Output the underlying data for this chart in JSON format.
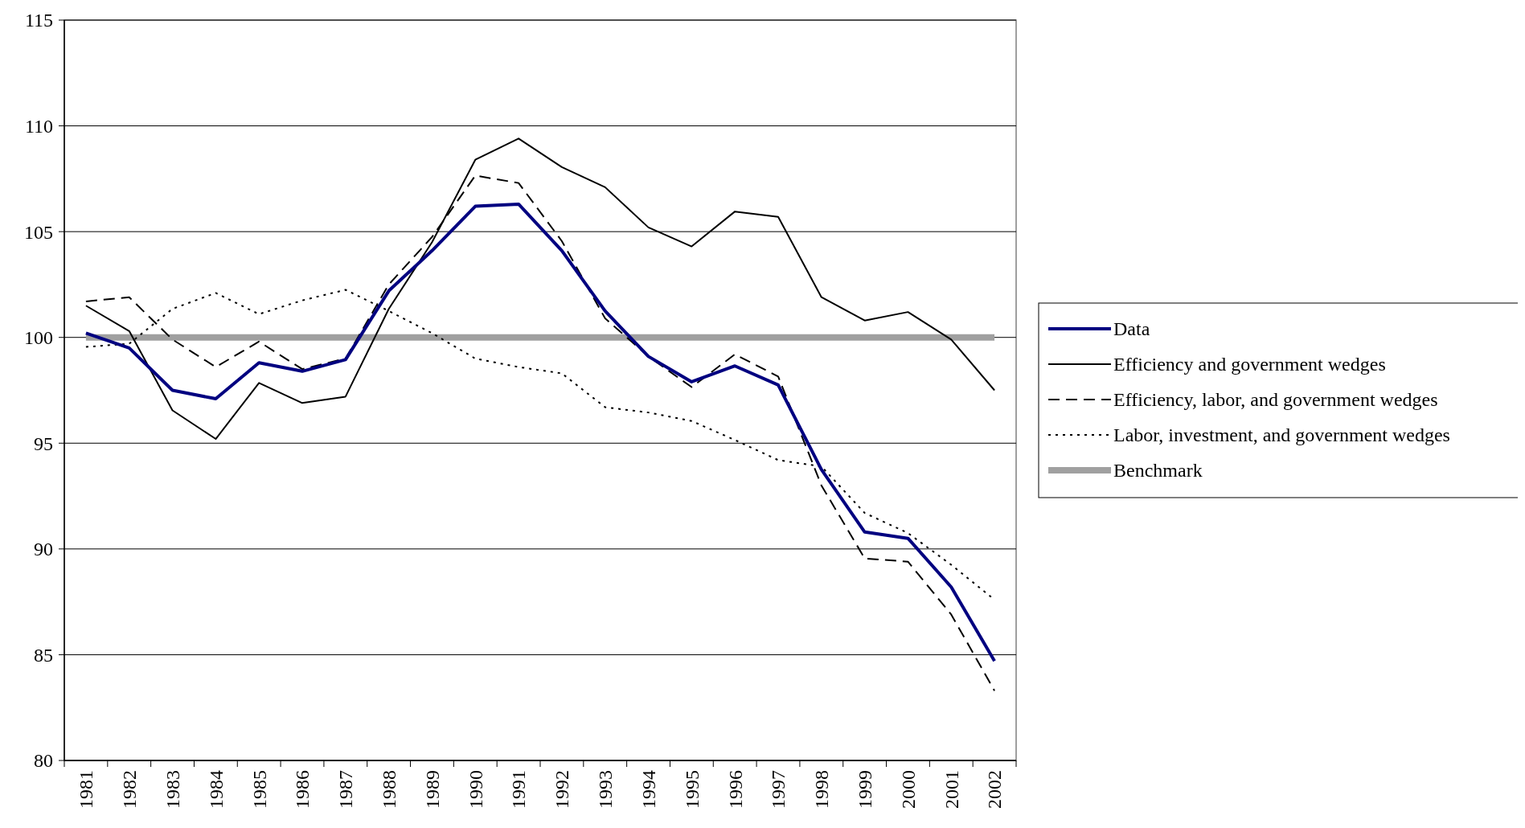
{
  "chart_data": {
    "type": "line",
    "categories": [
      "1981",
      "1982",
      "1983",
      "1984",
      "1985",
      "1986",
      "1987",
      "1988",
      "1989",
      "1990",
      "1991",
      "1992",
      "1993",
      "1994",
      "1995",
      "1996",
      "1997",
      "1998",
      "1999",
      "2000",
      "2001",
      "2002"
    ],
    "ylim": [
      80,
      115
    ],
    "yticks": [
      80,
      85,
      90,
      95,
      100,
      105,
      110,
      115
    ],
    "grid": "y",
    "legend": "right",
    "series": [
      {
        "name": "Data",
        "color": "#000080",
        "line_style": "solid",
        "values": [
          100.2,
          99.5,
          97.5,
          97.1,
          98.8,
          98.4,
          98.95,
          102.2,
          104.1,
          106.2,
          106.3,
          104.1,
          101.25,
          99.1,
          97.9,
          98.65,
          97.75,
          93.75,
          90.8,
          90.5,
          88.2,
          84.7
        ]
      },
      {
        "name": "Efficiency and government wedges",
        "color": "#000000",
        "line_style": "solid",
        "values": [
          101.5,
          100.3,
          96.55,
          95.2,
          97.85,
          96.9,
          97.2,
          101.35,
          104.5,
          108.4,
          109.4,
          108.05,
          107.1,
          105.2,
          104.3,
          105.95,
          105.7,
          101.9,
          100.8,
          101.2,
          99.9,
          97.5
        ]
      },
      {
        "name": "Efficiency, labor, and government wedges",
        "color": "#000000",
        "line_style": "dashed",
        "values": [
          101.7,
          101.9,
          99.9,
          98.6,
          99.8,
          98.5,
          99.0,
          102.5,
          104.75,
          107.65,
          107.3,
          104.55,
          100.9,
          99.1,
          97.65,
          99.2,
          98.15,
          93.0,
          89.55,
          89.4,
          86.9,
          83.3
        ]
      },
      {
        "name": "Labor, investment, and government wedges",
        "color": "#000000",
        "line_style": "dotted",
        "values": [
          99.55,
          99.7,
          101.35,
          102.1,
          101.1,
          101.75,
          102.25,
          101.25,
          100.2,
          99.0,
          98.6,
          98.3,
          96.7,
          96.45,
          96.05,
          95.15,
          94.2,
          93.9,
          91.7,
          90.75,
          89.25,
          87.6
        ]
      },
      {
        "name": "Benchmark",
        "color": "#a0a0a0",
        "line_style": "solid",
        "values": [
          100,
          100,
          100,
          100,
          100,
          100,
          100,
          100,
          100,
          100,
          100,
          100,
          100,
          100,
          100,
          100,
          100,
          100,
          100,
          100,
          100,
          100
        ]
      }
    ]
  }
}
